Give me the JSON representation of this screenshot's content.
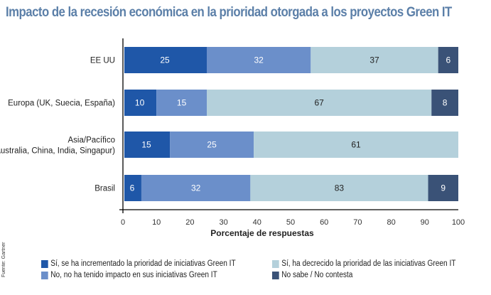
{
  "chart_data": {
    "type": "bar",
    "orientation": "horizontal",
    "stacked": true,
    "title": "Impacto de la recesión económica en la prioridad otorgada a los proyectos Green IT",
    "xlabel": "Porcentaje de respuestas",
    "ylabel": "",
    "xlim": [
      0,
      100
    ],
    "xticks": [
      "0",
      "10",
      "20",
      "30",
      "40",
      "50",
      "60",
      "70",
      "80",
      "90",
      "100"
    ],
    "grid": false,
    "legend_position": "bottom",
    "source": "Fuente: Gartner",
    "categories": [
      "EE UU",
      "Europa (UK, Suecia, España)",
      "Asia/Pacífico\n(Australia, China, India, Singapur)",
      "Brasil"
    ],
    "series": [
      {
        "name": "Sí, se ha incrementado la prioridad de iniciativas Green IT",
        "color": "#1f57a8",
        "label_color": "#ffffff",
        "values": [
          25,
          10,
          15,
          6
        ],
        "display_end": [
          25,
          10,
          14,
          5.5
        ]
      },
      {
        "name": "No, no ha tenido impacto en sus iniciativas Green IT",
        "color": "#6b8fca",
        "label_color": "#ffffff",
        "values": [
          32,
          15,
          25,
          32
        ],
        "display_end": [
          56,
          25,
          39,
          38
        ]
      },
      {
        "name": "Sí, ha decrecido la prioridad de las iniciativas Green IT",
        "color": "#b4d0db",
        "label_color": "#222222",
        "values": [
          37,
          67,
          61,
          83
        ],
        "display_end": [
          94,
          92,
          100,
          91
        ]
      },
      {
        "name": "No sabe / No contesta",
        "color": "#3a5277",
        "label_color": "#ffffff",
        "values": [
          6,
          8,
          null,
          9
        ],
        "display_end": [
          100,
          100,
          null,
          100
        ]
      }
    ]
  },
  "legend_layout": {
    "left_column": [
      0,
      1
    ],
    "right_column": [
      2,
      3
    ]
  }
}
